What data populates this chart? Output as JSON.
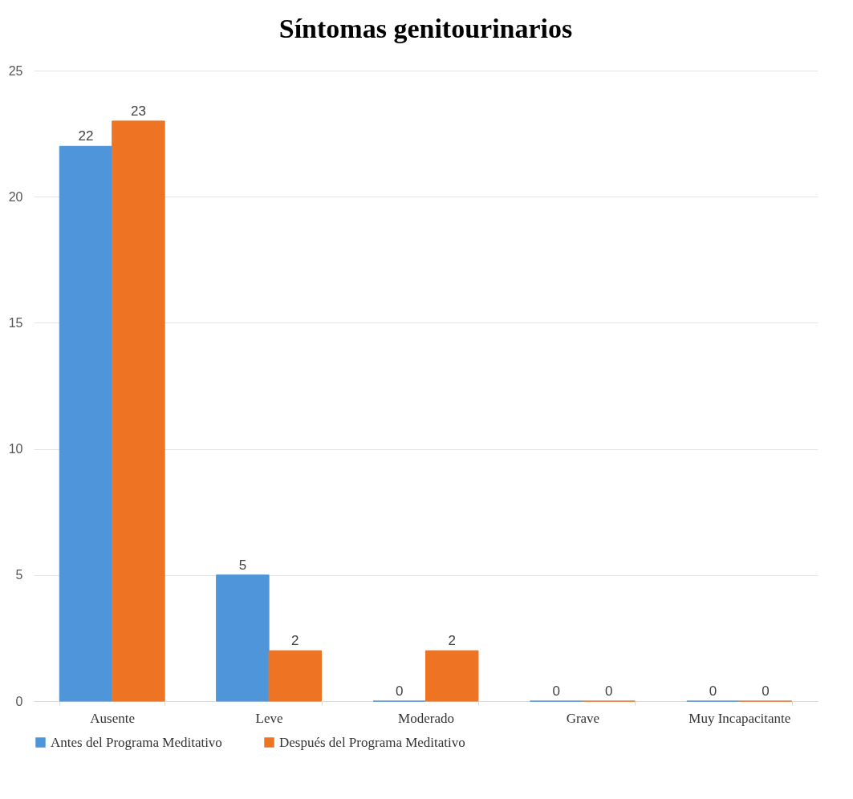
{
  "chart_data": {
    "type": "bar",
    "title": "Síntomas genitourinarios",
    "categories": [
      "Ausente",
      "Leve",
      "Moderado",
      "Grave",
      "Muy Incapacitante"
    ],
    "series": [
      {
        "name": "Antes del Programa Meditativo",
        "color": "#4e95d9",
        "values": [
          22,
          5,
          0,
          0,
          0
        ]
      },
      {
        "name": "Después del Programa Meditativo",
        "color": "#ee7424",
        "values": [
          23,
          2,
          2,
          0,
          0
        ]
      }
    ],
    "ylim": [
      0,
      25
    ],
    "yticks": [
      0,
      5,
      10,
      15,
      20,
      25
    ],
    "grid": "y",
    "legend": "bottom",
    "data_labels": true
  }
}
